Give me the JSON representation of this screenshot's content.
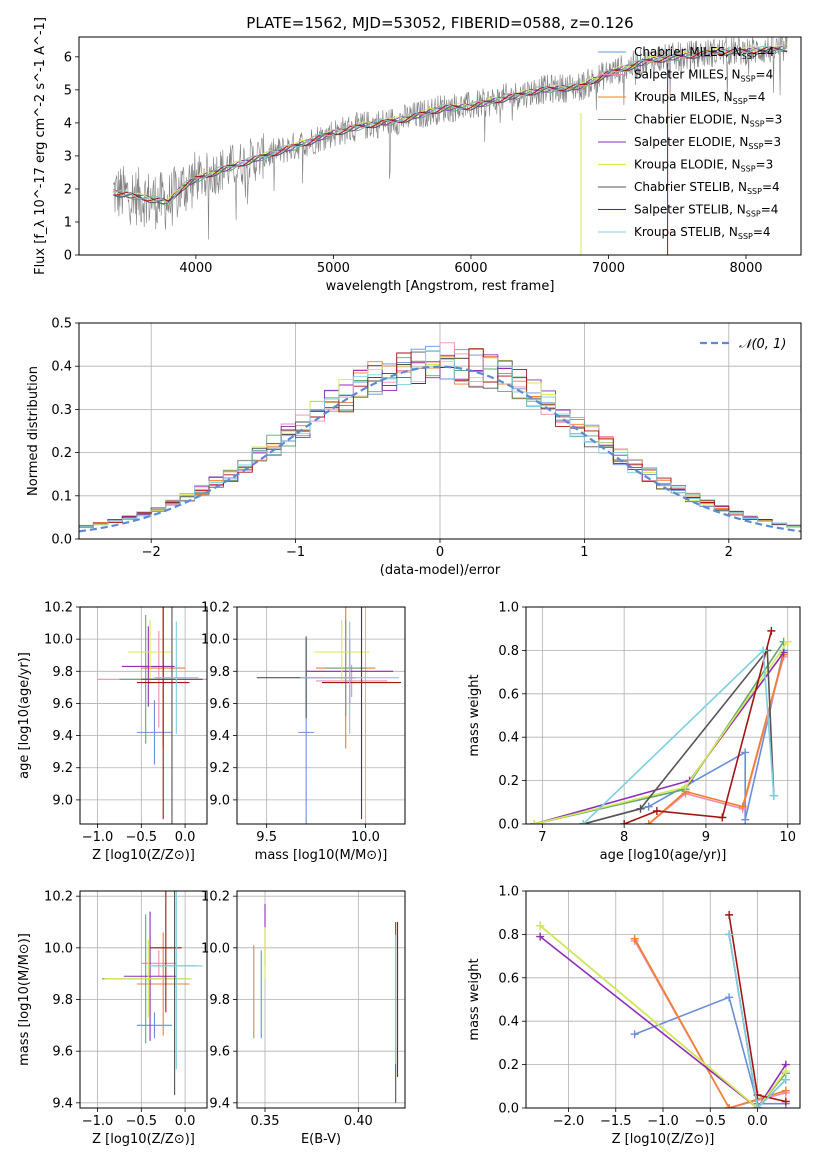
{
  "colors": {
    "chabrier_miles": "#1f77b4",
    "series": [
      "#6a8fd8",
      "#f08bb0",
      "#f07f2f",
      "#62a873",
      "#8e2db8",
      "#d8ea52",
      "#555555",
      "#a31515",
      "#7ecfe0"
    ]
  },
  "chart_data": [
    {
      "id": "spectrum",
      "type": "line",
      "title": "PLATE=1562, MJD=53052, FIBERID=0588, z=0.126",
      "xlabel": "wavelength [Angstrom, rest frame]",
      "ylabel": "Flux [f_λ 10^-17 erg cm^-2 s^-1 A^-1]",
      "xlim": [
        3150,
        8400
      ],
      "ylim": [
        0,
        6.6
      ],
      "xticks": [
        "4000",
        "5000",
        "6000",
        "7000",
        "8000"
      ],
      "yticks": [
        "0",
        "1",
        "2",
        "3",
        "4",
        "5",
        "6"
      ],
      "grid": false,
      "legend_position": "top-right",
      "legend": [
        "Chabrier MILES, N_SSP=4",
        "Salpeter MILES, N_SSP=4",
        "Kroupa MILES, N_SSP=4",
        "Chabrier ELODIE, N_SSP=3",
        "Salpeter ELODIE, N_SSP=3",
        "Kroupa ELODIE, N_SSP=3",
        "Chabrier STELIB, N_SSP=4",
        "Salpeter STELIB, N_SSP=4",
        "Kroupa STELIB, N_SSP=4"
      ],
      "data_continuum": {
        "x": [
          3400,
          3600,
          3800,
          3900,
          4000,
          4200,
          4500,
          4800,
          5000,
          5200,
          5500,
          5800,
          6000,
          6300,
          6500,
          6800,
          7000,
          7300,
          7500,
          7800,
          8100,
          8300
        ],
        "y": [
          1.9,
          1.75,
          1.6,
          2.05,
          2.3,
          2.6,
          3.0,
          3.4,
          3.7,
          3.9,
          4.1,
          4.45,
          4.5,
          4.8,
          5.0,
          5.1,
          5.5,
          5.9,
          6.0,
          6.15,
          6.2,
          6.25
        ]
      }
    },
    {
      "id": "residuals",
      "type": "line",
      "xlabel": "(data-model)/error",
      "ylabel": "Normed distribution",
      "xlim": [
        -2.5,
        2.5
      ],
      "ylim": [
        0,
        0.5
      ],
      "xticks": [
        "−2",
        "−1",
        "0",
        "1",
        "2"
      ],
      "yticks": [
        "0.0",
        "0.1",
        "0.2",
        "0.3",
        "0.4",
        "0.5"
      ],
      "grid": true,
      "legend_position": "top-right",
      "legend": [
        "𝒩(0, 1)"
      ],
      "series_note_count": 9
    },
    {
      "id": "age_vs_Z",
      "type": "scatter",
      "xlabel": "Z [log10(Z/Z⊙)]",
      "ylabel": "age [log10(age/yr)]",
      "xlim": [
        -1.2,
        0.25
      ],
      "ylim": [
        8.85,
        10.2
      ],
      "xticks": [
        "−1.0",
        "−0.5",
        "0.0"
      ],
      "yticks": [
        "9.0",
        "9.2",
        "9.4",
        "9.6",
        "9.8",
        "10.0",
        "10.2"
      ],
      "grid": true,
      "points": [
        {
          "x": -0.35,
          "y": 9.42,
          "xerr": 0.2,
          "yerr": 0.2,
          "c": 0
        },
        {
          "x": -0.3,
          "y": 9.75,
          "xerr": 0.7,
          "yerr": 0.3,
          "c": 1
        },
        {
          "x": -0.25,
          "y": 9.82,
          "xerr": 0.25,
          "yerr": 0.5,
          "c": 2
        },
        {
          "x": -0.45,
          "y": 9.75,
          "xerr": 0.3,
          "yerr": 0.4,
          "c": 3
        },
        {
          "x": -0.42,
          "y": 9.83,
          "xerr": 0.3,
          "yerr": 0.25,
          "c": 4
        },
        {
          "x": -0.4,
          "y": 9.92,
          "xerr": 0.25,
          "yerr": 0.2,
          "c": 5
        },
        {
          "x": -0.15,
          "y": 9.75,
          "xerr": 0.35,
          "yerr": 0.9,
          "c": 6
        },
        {
          "x": -0.25,
          "y": 9.73,
          "xerr": 0.3,
          "yerr": 0.85,
          "c": 7
        },
        {
          "x": -0.1,
          "y": 9.76,
          "xerr": 0.25,
          "yerr": 0.35,
          "c": 8
        }
      ]
    },
    {
      "id": "age_vs_mass",
      "type": "scatter",
      "xlabel": "mass [log10(M/M⊙)]",
      "ylabel": "",
      "xlim": [
        9.35,
        10.2
      ],
      "ylim": [
        8.85,
        10.2
      ],
      "xticks": [
        "9.5",
        "10.0"
      ],
      "yticks": [
        "9.0",
        "9.2",
        "9.4",
        "9.6",
        "9.8",
        "10.0",
        "10.2"
      ],
      "grid": true,
      "points": [
        {
          "x": 9.7,
          "y": 9.42,
          "xerr": 0.04,
          "yerr": 0.6,
          "c": 0
        },
        {
          "x": 9.93,
          "y": 9.74,
          "xerr": 0.18,
          "yerr": 0.1,
          "c": 1
        },
        {
          "x": 9.9,
          "y": 9.82,
          "xerr": 0.15,
          "yerr": 0.5,
          "c": 2
        },
        {
          "x": 9.9,
          "y": 9.82,
          "xerr": 0.1,
          "yerr": 0.3,
          "c": 3
        },
        {
          "x": 9.92,
          "y": 9.8,
          "xerr": 0.22,
          "yerr": 0.2,
          "c": 4
        },
        {
          "x": 9.88,
          "y": 9.92,
          "xerr": 0.14,
          "yerr": 0.2,
          "c": 5
        },
        {
          "x": 9.7,
          "y": 9.76,
          "xerr": 0.25,
          "yerr": 0.25,
          "c": 6
        },
        {
          "x": 9.98,
          "y": 9.73,
          "xerr": 0.2,
          "yerr": 0.85,
          "c": 7
        },
        {
          "x": 9.92,
          "y": 9.76,
          "xerr": 0.25,
          "yerr": 0.35,
          "c": 8
        }
      ]
    },
    {
      "id": "weight_vs_age",
      "type": "line",
      "xlabel": "age [log10(age/yr)]",
      "ylabel": "mass weight",
      "xlim": [
        6.8,
        10.15
      ],
      "ylim": [
        0,
        1.0
      ],
      "xticks": [
        "7",
        "8",
        "9",
        "10"
      ],
      "yticks": [
        "0.0",
        "0.2",
        "0.4",
        "0.6",
        "0.8",
        "1.0"
      ],
      "grid": true,
      "series": [
        {
          "x": [
            7.5,
            8.3,
            9.48,
            9.48,
            9.95
          ],
          "y": [
            0.0,
            0.08,
            0.33,
            0.02,
            0.8
          ],
          "c": 0
        },
        {
          "x": [
            8.3,
            8.75,
            9.45,
            9.95
          ],
          "y": [
            0.0,
            0.14,
            0.07,
            0.77
          ],
          "c": 1
        },
        {
          "x": [
            8.3,
            8.75,
            9.45,
            9.95
          ],
          "y": [
            0.0,
            0.15,
            0.08,
            0.78
          ],
          "c": 2
        },
        {
          "x": [
            6.9,
            8.75,
            9.95
          ],
          "y": [
            0.0,
            0.16,
            0.84
          ],
          "c": 3
        },
        {
          "x": [
            6.9,
            8.8,
            9.95
          ],
          "y": [
            0.0,
            0.2,
            0.79
          ],
          "c": 4
        },
        {
          "x": [
            6.9,
            8.75,
            10.0
          ],
          "y": [
            0.0,
            0.17,
            0.84
          ],
          "c": 5
        },
        {
          "x": [
            7.5,
            8.2,
            9.75,
            9.83
          ],
          "y": [
            0.0,
            0.07,
            0.8,
            0.13
          ],
          "c": 6
        },
        {
          "x": [
            8.0,
            8.4,
            9.2,
            9.8
          ],
          "y": [
            0.0,
            0.06,
            0.03,
            0.89
          ],
          "c": 7
        },
        {
          "x": [
            7.5,
            9.7,
            9.83
          ],
          "y": [
            0.0,
            0.8,
            0.13
          ],
          "c": 8
        }
      ]
    },
    {
      "id": "mass_vs_Z",
      "type": "scatter",
      "xlabel": "Z [log10(Z/Z⊙)]",
      "ylabel": "mass [log10(M/M⊙)]",
      "xlim": [
        -1.2,
        0.25
      ],
      "ylim": [
        9.38,
        10.22
      ],
      "xticks": [
        "−1.0",
        "−0.5",
        "0.0"
      ],
      "yticks": [
        "9.4",
        "9.6",
        "9.8",
        "10.0",
        "10.2"
      ],
      "grid": true,
      "points": [
        {
          "x": -0.35,
          "y": 9.7,
          "xerr": 0.2,
          "yerr": 0.05,
          "c": 0
        },
        {
          "x": -0.3,
          "y": 9.94,
          "xerr": 0.2,
          "yerr": 0.05,
          "c": 1
        },
        {
          "x": -0.25,
          "y": 9.86,
          "xerr": 0.3,
          "yerr": 0.2,
          "c": 2
        },
        {
          "x": -0.45,
          "y": 9.88,
          "xerr": 0.5,
          "yerr": 0.25,
          "c": 3
        },
        {
          "x": -0.4,
          "y": 9.89,
          "xerr": 0.3,
          "yerr": 0.25,
          "c": 4
        },
        {
          "x": -0.42,
          "y": 9.88,
          "xerr": 0.5,
          "yerr": 0.15,
          "c": 5
        },
        {
          "x": -0.12,
          "y": 9.93,
          "xerr": 0.25,
          "yerr": 0.5,
          "c": 6
        },
        {
          "x": -0.22,
          "y": 10.0,
          "xerr": 0.18,
          "yerr": 0.25,
          "c": 7
        },
        {
          "x": -0.1,
          "y": 9.93,
          "xerr": 0.3,
          "yerr": 0.4,
          "c": 8
        }
      ]
    },
    {
      "id": "mass_vs_ebv",
      "type": "scatter",
      "xlabel": "E(B-V)",
      "ylabel": "",
      "xlim": [
        0.335,
        0.425
      ],
      "ylim": [
        9.38,
        10.22
      ],
      "xticks": [
        "0.35",
        "0.40"
      ],
      "yticks": [
        "9.4",
        "9.6",
        "9.8",
        "10.0",
        "10.2"
      ],
      "grid": true,
      "points": [
        {
          "x": 0.344,
          "y": 9.83,
          "yerr": 0.18,
          "c": 2
        },
        {
          "x": 0.348,
          "y": 9.82,
          "yerr": 0.17,
          "c": 0
        },
        {
          "x": 0.35,
          "y": 10.05,
          "yerr": 0.12,
          "c": 4
        },
        {
          "x": 0.35,
          "y": 9.98,
          "yerr": 0.1,
          "c": 5
        },
        {
          "x": 0.42,
          "y": 9.75,
          "yerr": 0.35,
          "c": 6
        },
        {
          "x": 0.421,
          "y": 9.8,
          "yerr": 0.3,
          "c": 7
        },
        {
          "x": 0.42,
          "y": 9.8,
          "yerr": 0.25,
          "c": 8
        }
      ]
    },
    {
      "id": "weight_vs_Z",
      "type": "line",
      "xlabel": "Z [log10(Z/Z⊙)]",
      "ylabel": "mass weight",
      "xlim": [
        -2.45,
        0.45
      ],
      "ylim": [
        0,
        1.0
      ],
      "xticks": [
        "−2.0",
        "−1.5",
        "−1.0",
        "−0.5",
        "0.0"
      ],
      "yticks": [
        "0.0",
        "0.2",
        "0.4",
        "0.6",
        "0.8",
        "1.0"
      ],
      "grid": true,
      "series": [
        {
          "x": [
            -1.3,
            -0.3,
            0.0,
            0.3
          ],
          "y": [
            0.34,
            0.51,
            0.02,
            0.02
          ],
          "c": 0
        },
        {
          "x": [
            -1.3,
            -0.3,
            0.3
          ],
          "y": [
            0.77,
            0.0,
            0.07
          ],
          "c": 1
        },
        {
          "x": [
            -1.3,
            -0.3,
            0.3
          ],
          "y": [
            0.78,
            0.0,
            0.08
          ],
          "c": 2
        },
        {
          "x": [
            -2.3,
            0.0,
            0.3
          ],
          "y": [
            0.84,
            0.0,
            0.16
          ],
          "c": 3
        },
        {
          "x": [
            -2.3,
            0.0,
            0.3
          ],
          "y": [
            0.79,
            0.0,
            0.2
          ],
          "c": 4
        },
        {
          "x": [
            -2.3,
            0.0,
            0.3
          ],
          "y": [
            0.84,
            0.0,
            0.17
          ],
          "c": 5
        },
        {
          "x": [
            -0.3,
            0.0,
            0.3
          ],
          "y": [
            0.8,
            0.0,
            0.13
          ],
          "c": 6
        },
        {
          "x": [
            -0.3,
            0.0,
            0.3
          ],
          "y": [
            0.89,
            0.06,
            0.03
          ],
          "c": 7
        },
        {
          "x": [
            -0.3,
            0.0,
            0.3
          ],
          "y": [
            0.8,
            0.0,
            0.13
          ],
          "c": 8
        }
      ]
    }
  ]
}
